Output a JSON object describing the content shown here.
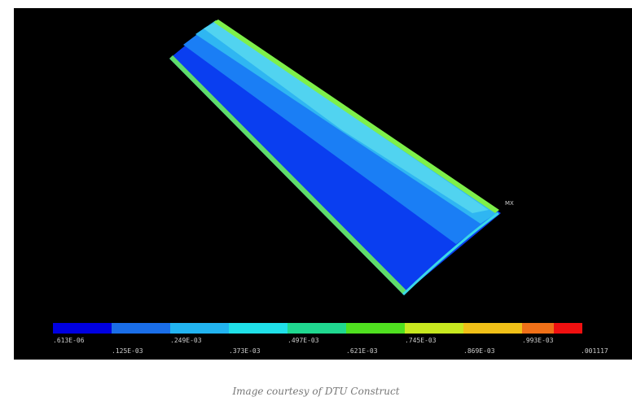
{
  "figure": {
    "marker": "MX",
    "legend_labels_top": [
      ".613E-06",
      ".249E-03",
      ".497E-03",
      ".745E-03",
      ".993E-03"
    ],
    "legend_labels_bottom": [
      ".125E-03",
      ".373E-03",
      ".621E-03",
      ".869E-03",
      ".001117"
    ],
    "caption": "Image courtesy of DTU Construct"
  }
}
